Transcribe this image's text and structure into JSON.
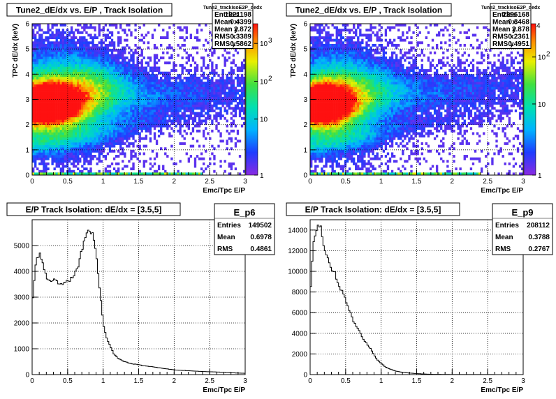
{
  "chart_data": [
    {
      "type": "heatmap",
      "title": "Tune2_dE/dx vs. E/P , Track Isolation",
      "xlabel": "Emc/Tpc  E/P",
      "ylabel": "TPC dE/dx (keV)",
      "xlim": [
        0,
        3
      ],
      "ylim": [
        0,
        6
      ],
      "x_ticks": [
        "0",
        "0.5",
        "1",
        "1.5",
        "2",
        "2.5",
        "3"
      ],
      "y_ticks": [
        "0",
        "1",
        "2",
        "3",
        "4",
        "5",
        "6"
      ],
      "z_scale": "log",
      "z_ticks": [
        "1",
        "10",
        "10",
        "10"
      ],
      "z_exponents": [
        "",
        "",
        "2",
        "3"
      ],
      "grid": true,
      "stats": {
        "name": "Tune2_trackIsoE2P_dedx",
        "rows": [
          {
            "label": "Entries",
            "value": "1221198"
          },
          {
            "label": "Mean x",
            "value": "0.4399"
          },
          {
            "label": "Mean y",
            "value": "2.872"
          },
          {
            "label": "RMS x",
            "value": "0.3389"
          },
          {
            "label": "RMS y",
            "value": "0.5862"
          }
        ]
      },
      "peak": {
        "x": 0.15,
        "y": 2.8
      },
      "ridge_end": {
        "x": 3.0,
        "y": 3.4
      }
    },
    {
      "type": "heatmap",
      "title": "Tune2_dE/dx vs. E/P , Track Isolation",
      "xlabel": "Emc/Tpc  E/P",
      "ylabel": "TPC dE/dx (keV)",
      "xlim": [
        0,
        3
      ],
      "ylim": [
        0,
        6
      ],
      "x_ticks": [
        "0",
        "0.5",
        "1",
        "1.5",
        "2",
        "2.5",
        "3"
      ],
      "y_ticks": [
        "0",
        "1",
        "2",
        "3",
        "4",
        "5",
        "6"
      ],
      "z_scale": "log",
      "z_ticks": [
        "1",
        "10",
        "10"
      ],
      "z_exponents": [
        "",
        "",
        "2"
      ],
      "z_corner": "4",
      "grid": true,
      "stats": {
        "name": "Tune2_trackIsoE2P_dedx",
        "rows": [
          {
            "label": "Entries",
            "value": "2296168"
          },
          {
            "label": "Mean x",
            "value": "0.3468"
          },
          {
            "label": "Mean y",
            "value": "2.878"
          },
          {
            "label": "RMS x",
            "value": "0.2361"
          },
          {
            "label": "RMS y",
            "value": "0.4951"
          }
        ]
      },
      "peak": {
        "x": 0.15,
        "y": 2.8
      },
      "ridge_end": {
        "x": 3.0,
        "y": 3.6
      }
    },
    {
      "type": "line",
      "title": "E/P Track Isolation: dE/dx = [3.5,5]",
      "xlabel": "Emc/Tpc  E/P",
      "ylabel": "",
      "xlim": [
        0,
        3
      ],
      "ylim": [
        0,
        6000
      ],
      "x_ticks": [
        "0",
        "0.5",
        "1",
        "1.5",
        "2",
        "2.5",
        "3"
      ],
      "y_ticks": [
        "0",
        "1000",
        "2000",
        "3000",
        "4000",
        "5000"
      ],
      "grid": true,
      "stats": {
        "name": "E_p6",
        "rows": [
          {
            "label": "Entries",
            "value": "149502"
          },
          {
            "label": "Mean",
            "value": "0.6978"
          },
          {
            "label": "RMS",
            "value": "0.4861"
          }
        ]
      },
      "x": [
        0.0,
        0.05,
        0.1,
        0.15,
        0.2,
        0.25,
        0.3,
        0.35,
        0.4,
        0.45,
        0.5,
        0.55,
        0.6,
        0.65,
        0.7,
        0.75,
        0.8,
        0.85,
        0.9,
        0.95,
        1.0,
        1.05,
        1.1,
        1.15,
        1.2,
        1.3,
        1.4,
        1.5,
        1.6,
        1.7,
        1.8,
        1.9,
        2.0,
        2.2,
        2.4,
        2.6,
        2.8,
        3.0
      ],
      "y": [
        2700,
        4300,
        4700,
        4300,
        3800,
        3600,
        3700,
        3600,
        3500,
        3600,
        3600,
        3700,
        3900,
        4200,
        4800,
        5300,
        5700,
        5400,
        4800,
        3400,
        2000,
        1400,
        1100,
        800,
        650,
        500,
        420,
        380,
        330,
        300,
        260,
        220,
        180,
        150,
        120,
        100,
        70,
        50
      ]
    },
    {
      "type": "line",
      "title": "E/P Track Isolation: dE/dx = [3.5,5]",
      "xlabel": "Emc/Tpc  E/P",
      "ylabel": "",
      "xlim": [
        0,
        3
      ],
      "ylim": [
        0,
        15000
      ],
      "x_ticks": [
        "0",
        "0.5",
        "1",
        "1.5",
        "2",
        "2.5",
        "3"
      ],
      "y_ticks": [
        "0",
        "2000",
        "4000",
        "6000",
        "8000",
        "10000",
        "12000",
        "14000"
      ],
      "grid": true,
      "stats": {
        "name": "E_p9",
        "rows": [
          {
            "label": "Entries",
            "value": "208112"
          },
          {
            "label": "Mean",
            "value": "0.3788"
          },
          {
            "label": "RMS",
            "value": "0.2767"
          }
        ]
      },
      "x": [
        0.0,
        0.05,
        0.1,
        0.15,
        0.2,
        0.25,
        0.3,
        0.35,
        0.4,
        0.45,
        0.5,
        0.55,
        0.6,
        0.65,
        0.7,
        0.75,
        0.8,
        0.85,
        0.9,
        0.95,
        1.0,
        1.05,
        1.1,
        1.2,
        1.3,
        1.4,
        1.5,
        1.6,
        1.7,
        2.0,
        3.0
      ],
      "y": [
        7500,
        13000,
        14200,
        14600,
        12000,
        11500,
        10200,
        9800,
        8600,
        8000,
        7200,
        6300,
        5300,
        4700,
        4100,
        3400,
        3000,
        2500,
        1900,
        1400,
        1100,
        800,
        600,
        350,
        220,
        150,
        100,
        60,
        30,
        10,
        0
      ]
    }
  ]
}
